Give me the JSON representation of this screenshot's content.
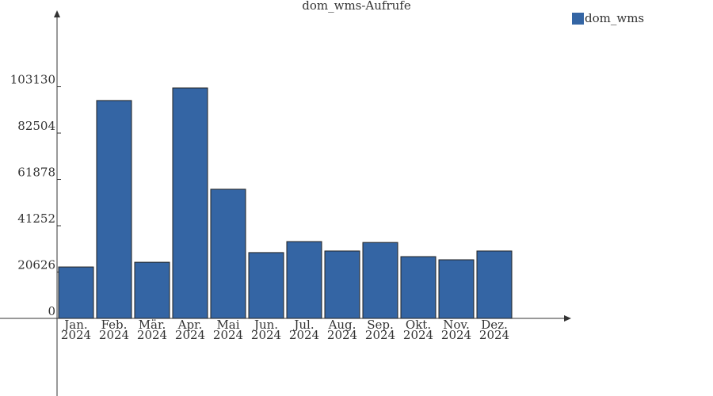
{
  "chart_data": {
    "type": "bar",
    "title": "dom_wms-Aufrufe",
    "categories": [
      [
        "Jan.",
        "2024"
      ],
      [
        "Feb.",
        "2024"
      ],
      [
        "Mär.",
        "2024"
      ],
      [
        "Apr.",
        "2024"
      ],
      [
        "Mai",
        "2024"
      ],
      [
        "Jun.",
        "2024"
      ],
      [
        "Jul.",
        "2024"
      ],
      [
        "Aug.",
        "2024"
      ],
      [
        "Sep.",
        "2024"
      ],
      [
        "Okt.",
        "2024"
      ],
      [
        "Nov.",
        "2024"
      ],
      [
        "Dez.",
        "2024"
      ]
    ],
    "series": [
      {
        "name": "dom_wms",
        "color": "#3465a4",
        "values": [
          22900,
          97000,
          25000,
          102600,
          57500,
          29300,
          34200,
          30000,
          33800,
          27500,
          26100,
          30000
        ]
      }
    ],
    "ylim": [
      -34550,
      135400
    ],
    "yticks": [
      0,
      20626,
      41252,
      61878,
      82504,
      103130
    ],
    "legend": "top-right"
  }
}
